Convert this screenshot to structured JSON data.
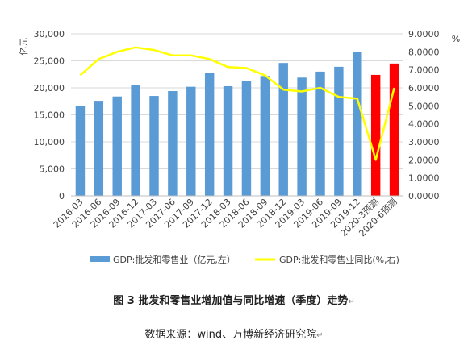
{
  "chart_data": {
    "type": "bar+line",
    "categories": [
      "2016-03",
      "2016-06",
      "2016-09",
      "2016-12",
      "2017-03",
      "2017-06",
      "2017-09",
      "2017-12",
      "2018-03",
      "2018-06",
      "2018-09",
      "2018-12",
      "2019-03",
      "2019-06",
      "2019-09",
      "2019-12",
      "2020-3预测",
      "2020-6预测"
    ],
    "series": [
      {
        "name": "GDP:批发和零售业（亿元,左）",
        "type": "bar",
        "axis": "left",
        "values": [
          16700,
          17600,
          18400,
          20500,
          18500,
          19400,
          20200,
          22700,
          20300,
          21300,
          22200,
          24600,
          21900,
          23000,
          23900,
          26700,
          22400,
          24500
        ],
        "colors": [
          "#5B9BD5",
          "#5B9BD5",
          "#5B9BD5",
          "#5B9BD5",
          "#5B9BD5",
          "#5B9BD5",
          "#5B9BD5",
          "#5B9BD5",
          "#5B9BD5",
          "#5B9BD5",
          "#5B9BD5",
          "#5B9BD5",
          "#5B9BD5",
          "#5B9BD5",
          "#5B9BD5",
          "#5B9BD5",
          "#FF0000",
          "#FF0000"
        ]
      },
      {
        "name": "GDP:批发和零售业同比(%,右)",
        "type": "line",
        "axis": "right",
        "color": "#FFFF00",
        "values": [
          6.7,
          7.6,
          8.0,
          8.25,
          8.1,
          7.8,
          7.8,
          7.6,
          7.15,
          7.1,
          6.7,
          5.9,
          5.8,
          6.0,
          5.5,
          5.4,
          2.0,
          6.0
        ]
      }
    ],
    "y_left": {
      "unit": "亿元",
      "range": [
        0,
        30000
      ],
      "ticks": [
        0,
        5000,
        10000,
        15000,
        20000,
        25000,
        30000
      ],
      "tick_labels": [
        "0",
        "5,000",
        "10,000",
        "15,000",
        "20,000",
        "25,000",
        "30,000"
      ]
    },
    "y_right": {
      "unit": "%",
      "range": [
        0,
        9
      ],
      "ticks": [
        0,
        1,
        2,
        3,
        4,
        5,
        6,
        7,
        8,
        9
      ],
      "tick_labels": [
        "0.0000",
        "1.0000",
        "2.0000",
        "3.0000",
        "4.0000",
        "5.0000",
        "6.0000",
        "7.0000",
        "8.0000",
        "9.0000"
      ]
    },
    "grid": true,
    "legend": "bottom",
    "legend_entries": [
      "GDP:批发和零售业（亿元,左）",
      "GDP:批发和零售业同比(%,右)"
    ]
  },
  "figure_title": "图 3  批发和零售业增加值与同比增速（季度）走势",
  "source": "数据来源：wind、万博新经济研究院",
  "paragraph_mark": "↵"
}
